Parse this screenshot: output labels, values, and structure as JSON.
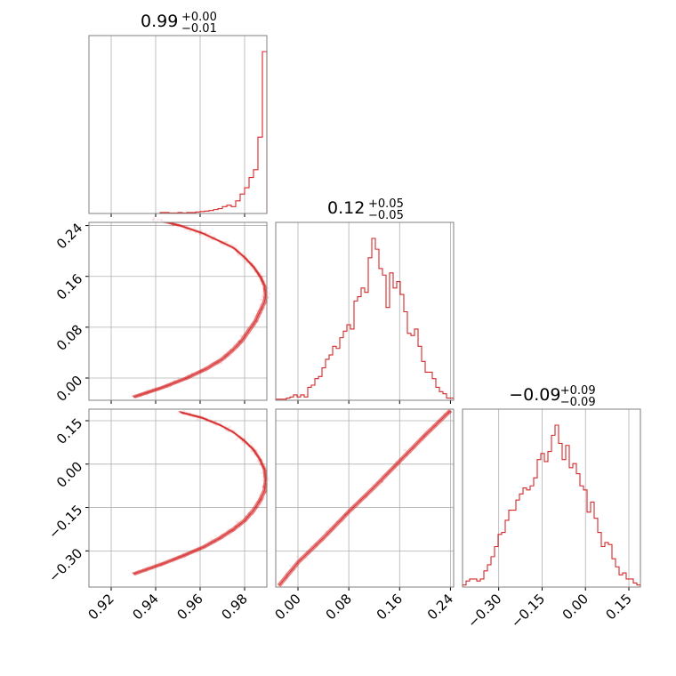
{
  "chart_data": {
    "type": "corner",
    "color": "#d62728",
    "parameters": [
      {
        "title_value": "0.99",
        "title_plus": "+0.00",
        "title_minus": "−0.01",
        "range": [
          0.91,
          0.99
        ],
        "ticks": [
          0.92,
          0.94,
          0.96,
          0.98
        ],
        "tick_labels": [
          "0.92",
          "0.94",
          "0.96",
          "0.98"
        ]
      },
      {
        "title_value": "0.12",
        "title_plus": "+0.05",
        "title_minus": "−0.05",
        "range": [
          -0.035,
          0.245
        ],
        "ticks": [
          0.0,
          0.08,
          0.16,
          0.24
        ],
        "tick_labels": [
          "0.00",
          "0.08",
          "0.16",
          "0.24"
        ]
      },
      {
        "title_value": "−0.09",
        "title_plus": "+0.09",
        "title_minus": "−0.09",
        "range": [
          -0.425,
          0.19
        ],
        "ticks": [
          -0.3,
          -0.15,
          0.0,
          0.15
        ],
        "tick_labels": [
          "−0.30",
          "−0.15",
          "0.00",
          "0.15"
        ]
      }
    ],
    "histograms": [
      {
        "param": 0,
        "edges": [
          0.942,
          0.944,
          0.946,
          0.948,
          0.95,
          0.952,
          0.954,
          0.956,
          0.958,
          0.96,
          0.962,
          0.964,
          0.966,
          0.968,
          0.97,
          0.972,
          0.974,
          0.976,
          0.978,
          0.98,
          0.982,
          0.984,
          0.986,
          0.988,
          0.99
        ],
        "counts": [
          2,
          2,
          1,
          1,
          2,
          1,
          2,
          2,
          3,
          4,
          5,
          6,
          8,
          10,
          14,
          17,
          14,
          26,
          40,
          53,
          74,
          90,
          157,
          333
        ]
      },
      {
        "param": 1,
        "edges": [
          -0.035,
          -0.0294,
          -0.0238,
          -0.0182,
          -0.0126,
          -0.007,
          -0.0014,
          0.0042,
          0.0098,
          0.0154,
          0.021,
          0.0266,
          0.0322,
          0.0378,
          0.0434,
          0.049,
          0.0546,
          0.0602,
          0.0658,
          0.0714,
          0.077,
          0.0826,
          0.0882,
          0.0938,
          0.0994,
          0.105,
          0.1106,
          0.1162,
          0.1218,
          0.1274,
          0.133,
          0.1386,
          0.1442,
          0.1498,
          0.1554,
          0.161,
          0.1666,
          0.1722,
          0.1778,
          0.1834,
          0.189,
          0.1946,
          0.2002,
          0.2058,
          0.2114,
          0.217,
          0.2226,
          0.2282,
          0.2338,
          0.2394,
          0.245
        ],
        "counts": [
          1,
          1,
          1,
          2,
          3,
          5,
          3,
          5,
          3,
          12,
          14,
          20,
          22,
          30,
          38,
          42,
          50,
          48,
          58,
          64,
          70,
          66,
          92,
          96,
          104,
          100,
          132,
          150,
          140,
          122,
          116,
          86,
          118,
          104,
          110,
          98,
          82,
          62,
          60,
          66,
          50,
          36,
          26,
          26,
          20,
          12,
          8,
          6,
          2,
          2
        ]
      },
      {
        "param": 2,
        "edges": [
          -0.425,
          -0.4127,
          -0.4004,
          -0.3881,
          -0.3758,
          -0.3635,
          -0.3512,
          -0.3389,
          -0.3266,
          -0.3143,
          -0.302,
          -0.2897,
          -0.2774,
          -0.2651,
          -0.2528,
          -0.2405,
          -0.2282,
          -0.2159,
          -0.2036,
          -0.1913,
          -0.179,
          -0.1667,
          -0.1544,
          -0.1421,
          -0.1298,
          -0.1175,
          -0.1052,
          -0.0929,
          -0.0806,
          -0.0683,
          -0.056,
          -0.0437,
          -0.0314,
          -0.0191,
          -0.0068,
          0.0055,
          0.0178,
          0.0301,
          0.0424,
          0.0547,
          0.067,
          0.0793,
          0.0916,
          0.1039,
          0.1162,
          0.1285,
          0.1408,
          0.1531,
          0.1654,
          0.1777,
          0.19
        ],
        "counts": [
          2,
          6,
          8,
          8,
          6,
          8,
          16,
          22,
          30,
          40,
          52,
          54,
          66,
          76,
          76,
          86,
          92,
          98,
          96,
          100,
          108,
          126,
          132,
          124,
          134,
          150,
          160,
          142,
          126,
          140,
          118,
          122,
          112,
          100,
          96,
          74,
          84,
          68,
          54,
          40,
          44,
          42,
          28,
          20,
          12,
          14,
          8,
          8,
          4,
          2
        ]
      }
    ],
    "scatter_2d": [
      {
        "x_param": 0,
        "y_param": 1,
        "curve_x": [
          0.93,
          0.943,
          0.954,
          0.963,
          0.97,
          0.975,
          0.979,
          0.982,
          0.985,
          0.987,
          0.989,
          0.9895,
          0.989,
          0.987,
          0.984,
          0.98,
          0.975,
          0.969,
          0.961,
          0.951,
          0.939
        ],
        "curve_y": [
          -0.03,
          -0.015,
          0.0,
          0.015,
          0.03,
          0.045,
          0.06,
          0.075,
          0.09,
          0.105,
          0.12,
          0.13,
          0.145,
          0.16,
          0.175,
          0.19,
          0.205,
          0.215,
          0.228,
          0.24,
          0.25
        ]
      },
      {
        "x_param": 0,
        "y_param": 2,
        "curve_x": [
          0.93,
          0.943,
          0.953,
          0.962,
          0.969,
          0.975,
          0.98,
          0.984,
          0.987,
          0.989,
          0.9895,
          0.989,
          0.987,
          0.984,
          0.98,
          0.975,
          0.969,
          0.961,
          0.951
        ],
        "curve_y": [
          -0.38,
          -0.345,
          -0.315,
          -0.285,
          -0.255,
          -0.225,
          -0.195,
          -0.16,
          -0.125,
          -0.09,
          -0.055,
          -0.02,
          0.015,
          0.05,
          0.08,
          0.11,
          0.135,
          0.16,
          0.18
        ]
      },
      {
        "x_param": 1,
        "y_param": 2,
        "curve_x": [
          -0.03,
          0.0,
          0.04,
          0.08,
          0.12,
          0.16,
          0.2,
          0.24
        ],
        "curve_y": [
          -0.42,
          -0.34,
          -0.255,
          -0.165,
          -0.08,
          0.01,
          0.1,
          0.185
        ]
      }
    ]
  }
}
